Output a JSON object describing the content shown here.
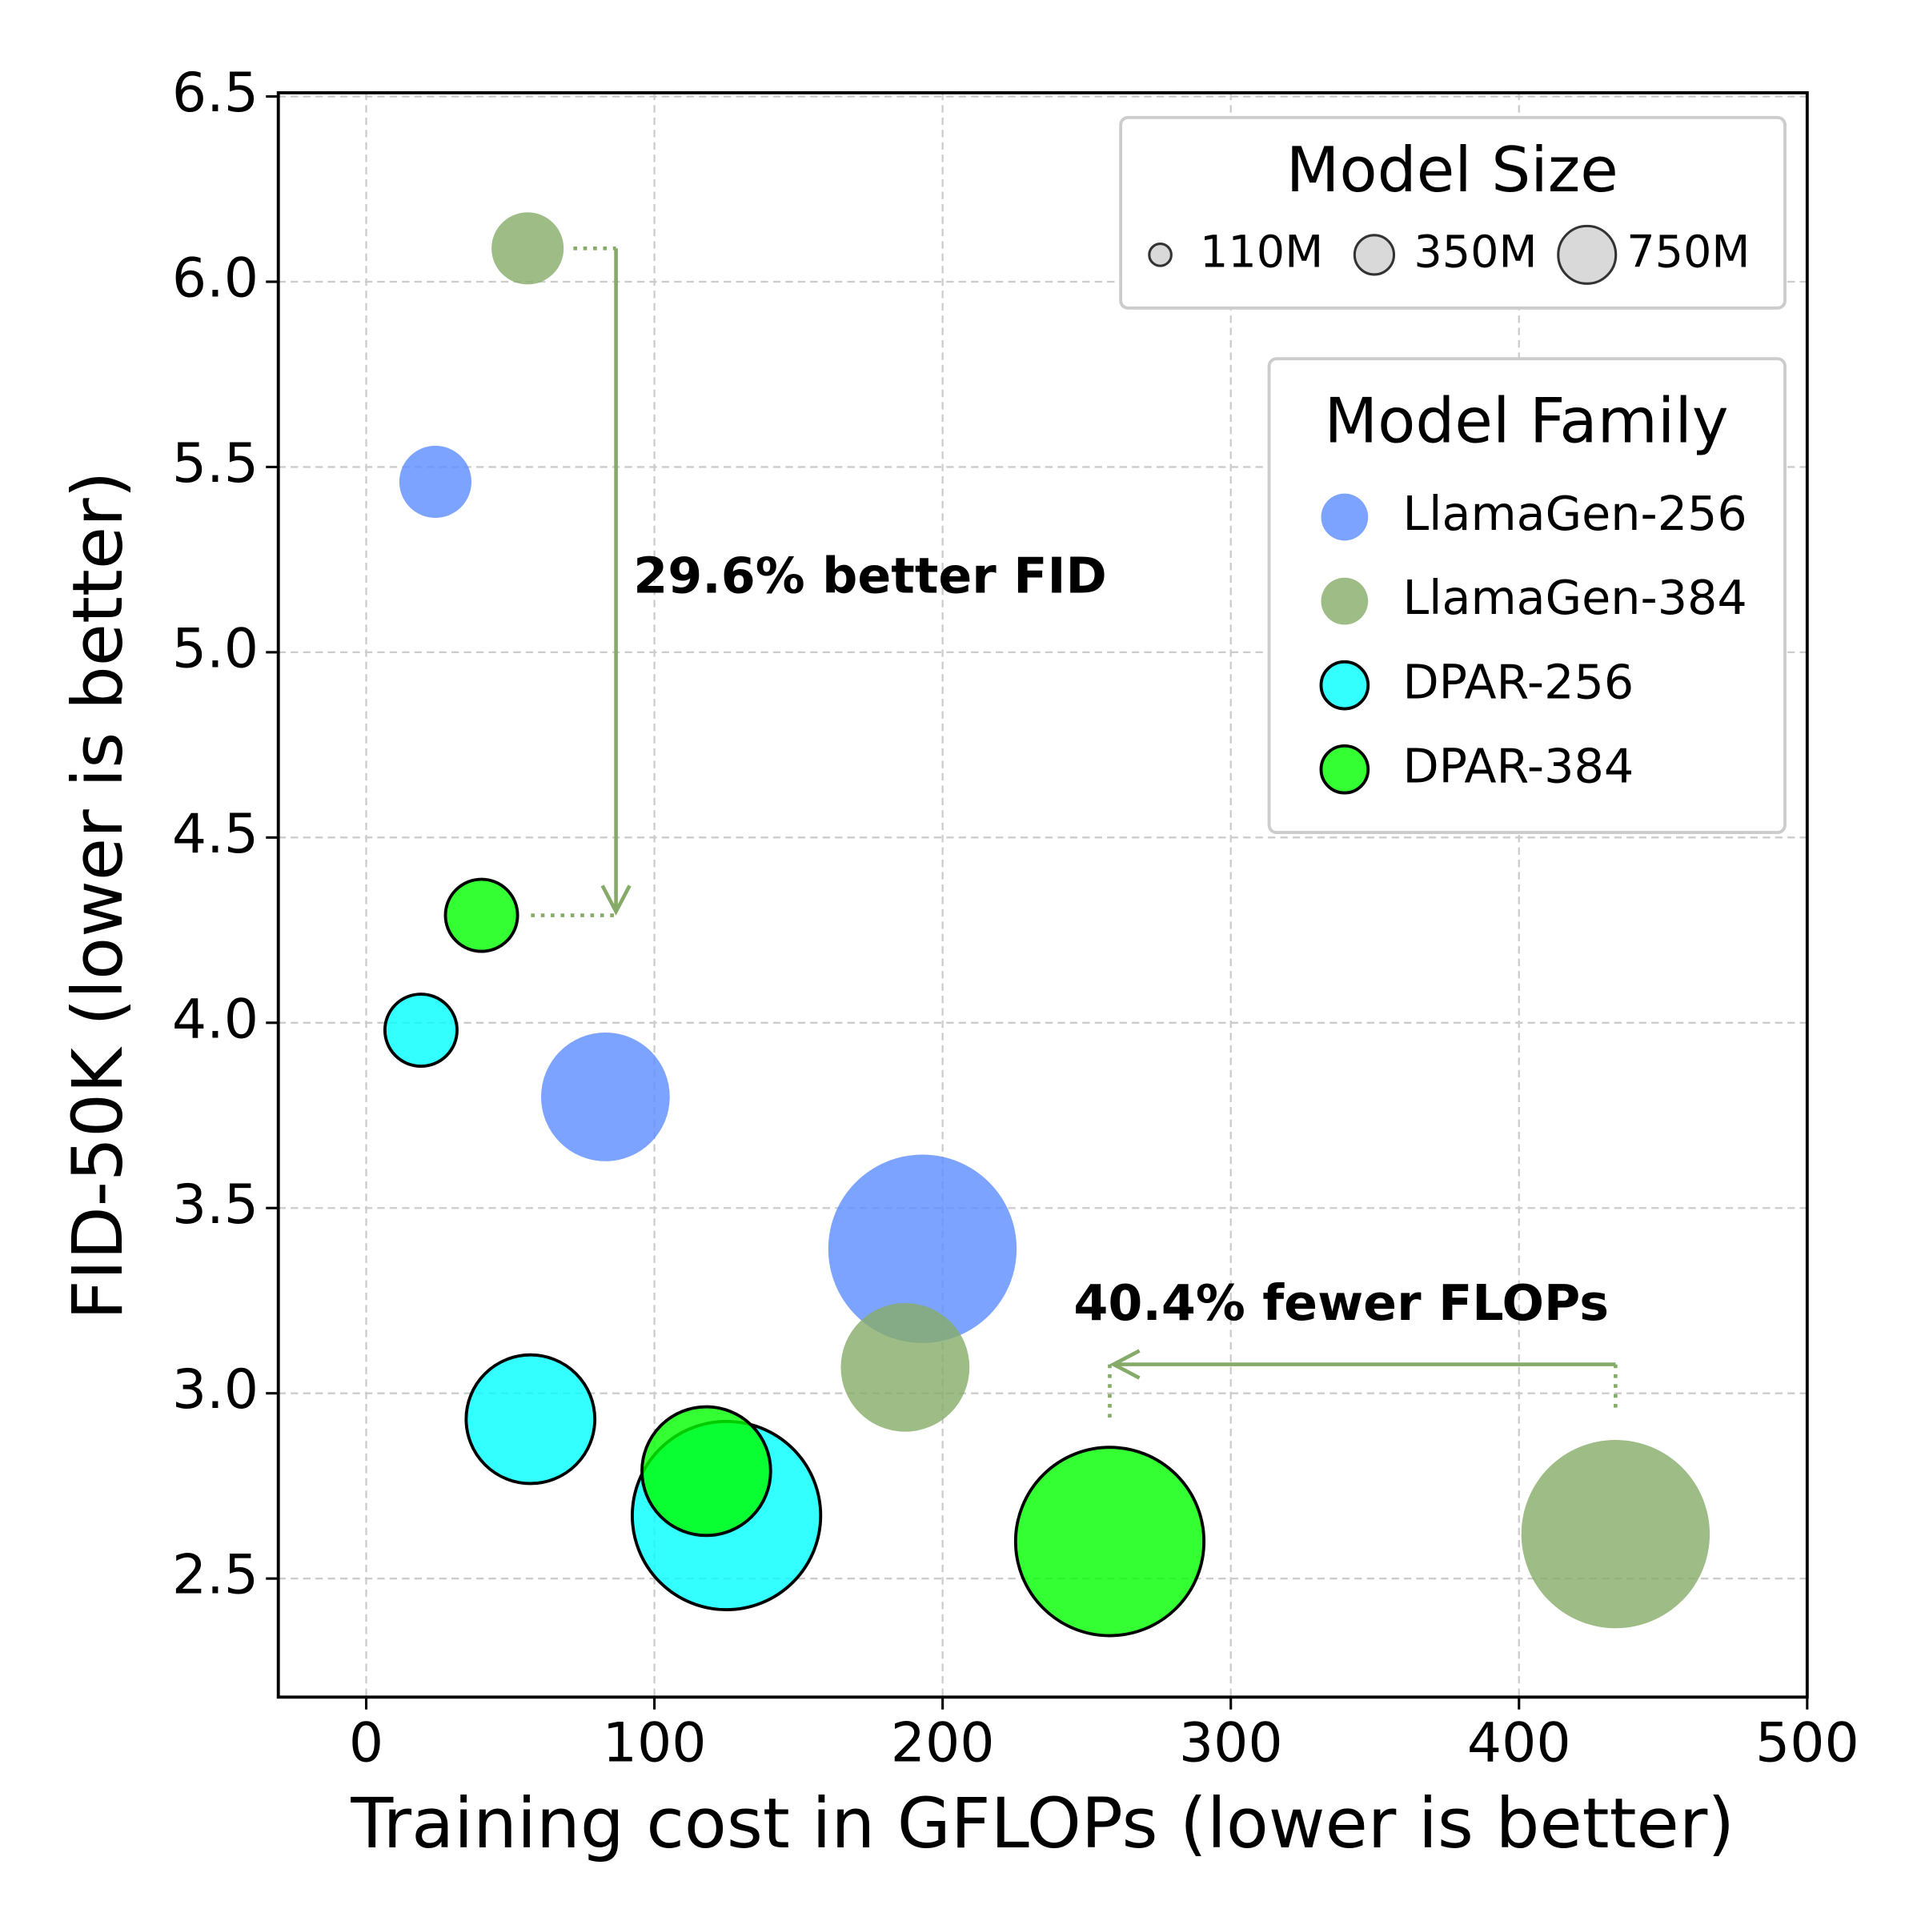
{
  "chart_data": {
    "type": "scatter",
    "xlabel": "Training cost in GFLOPs (lower is better)",
    "ylabel": "FID-50K (lower is better)",
    "xlim": [
      -30.5,
      500
    ],
    "ylim": [
      2.18,
      6.51
    ],
    "xticks": [
      0,
      100,
      200,
      300,
      400,
      500
    ],
    "yticks": [
      2.5,
      {
        "value": 3,
        "label": "3.0"
      },
      3.5,
      {
        "value": 4,
        "label": "4.0"
      },
      4.5,
      {
        "value": 5,
        "label": "5.0"
      },
      5.5,
      {
        "value": 6,
        "label": "6.0"
      },
      6.5
    ],
    "grid": true,
    "alpha": 0.8,
    "size_legend": {
      "title": "Model Size",
      "labels": [
        "110M",
        "350M",
        "750M"
      ],
      "sizes": [
        110,
        350,
        750
      ]
    },
    "legend_title": "Model Family",
    "series": [
      {
        "name": "LlamaGen-256",
        "color": "#5b8cff",
        "edgecolor": null,
        "x": [
          24,
          83,
          193
        ],
        "values": [
          5.46,
          3.8,
          3.39
        ],
        "sizes": [
          110,
          350,
          750
        ]
      },
      {
        "name": "LlamaGen-384",
        "color": "#86ab68",
        "edgecolor": null,
        "x": [
          56,
          187,
          433.5
        ],
        "values": [
          6.09,
          3.07,
          2.62
        ],
        "sizes": [
          110,
          350,
          750
        ]
      },
      {
        "name": "DPAR-256",
        "color": "#00ffff",
        "edgecolor": "#000000",
        "x": [
          19,
          57,
          125
        ],
        "values": [
          3.98,
          2.93,
          2.67
        ],
        "sizes": [
          110,
          350,
          750
        ]
      },
      {
        "name": "DPAR-384",
        "color": "#00ff00",
        "edgecolor": "#000000",
        "x": [
          40,
          118,
          258
        ],
        "values": [
          4.29,
          2.79,
          2.6
        ],
        "sizes": [
          110,
          350,
          750
        ]
      }
    ],
    "annotations": [
      {
        "text": "29.6% better FID",
        "color": "#86ab68"
      },
      {
        "text": "40.4% fewer FLOPs",
        "color": "#86ab68"
      }
    ]
  }
}
